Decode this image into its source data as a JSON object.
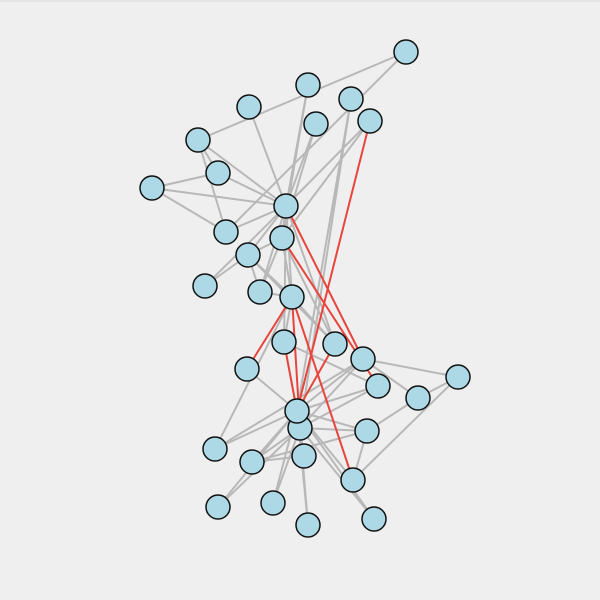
{
  "graph": {
    "node_count": 34,
    "edge_count": 78,
    "highlighted_edge_count": 8,
    "colors": {
      "background": "#efefef",
      "node_fill": "#add8e6",
      "node_stroke": "#111111",
      "edge_default": "#b8b8b8",
      "edge_highlight": "#e8453c"
    },
    "edges": [
      [
        1,
        2
      ],
      [
        1,
        3
      ],
      [
        1,
        4
      ],
      [
        1,
        5
      ],
      [
        1,
        6
      ],
      [
        1,
        7
      ],
      [
        1,
        8
      ],
      [
        1,
        9
      ],
      [
        1,
        11
      ],
      [
        1,
        12
      ],
      [
        1,
        13
      ],
      [
        1,
        14
      ],
      [
        1,
        18
      ],
      [
        1,
        20
      ],
      [
        1,
        22
      ],
      [
        1,
        32
      ],
      [
        2,
        3
      ],
      [
        2,
        4
      ],
      [
        2,
        8
      ],
      [
        2,
        14
      ],
      [
        2,
        18
      ],
      [
        2,
        20
      ],
      [
        2,
        22
      ],
      [
        2,
        31
      ],
      [
        3,
        4
      ],
      [
        3,
        8
      ],
      [
        3,
        9
      ],
      [
        3,
        10
      ],
      [
        3,
        14
      ],
      [
        3,
        28
      ],
      [
        3,
        29
      ],
      [
        3,
        33
      ],
      [
        4,
        8
      ],
      [
        4,
        13
      ],
      [
        4,
        14
      ],
      [
        5,
        7
      ],
      [
        5,
        11
      ],
      [
        6,
        7
      ],
      [
        6,
        11
      ],
      [
        6,
        17
      ],
      [
        7,
        17
      ],
      [
        9,
        31
      ],
      [
        9,
        33
      ],
      [
        9,
        34
      ],
      [
        10,
        34
      ],
      [
        14,
        34
      ],
      [
        15,
        33
      ],
      [
        15,
        34
      ],
      [
        16,
        33
      ],
      [
        16,
        34
      ],
      [
        19,
        33
      ],
      [
        19,
        34
      ],
      [
        20,
        34
      ],
      [
        21,
        33
      ],
      [
        21,
        34
      ],
      [
        23,
        33
      ],
      [
        23,
        34
      ],
      [
        24,
        26
      ],
      [
        24,
        28
      ],
      [
        24,
        30
      ],
      [
        24,
        33
      ],
      [
        24,
        34
      ],
      [
        25,
        26
      ],
      [
        25,
        28
      ],
      [
        25,
        32
      ],
      [
        26,
        32
      ],
      [
        27,
        30
      ],
      [
        27,
        34
      ],
      [
        28,
        34
      ],
      [
        29,
        32
      ],
      [
        29,
        34
      ],
      [
        30,
        33
      ],
      [
        30,
        34
      ],
      [
        31,
        33
      ],
      [
        31,
        34
      ],
      [
        32,
        33
      ],
      [
        32,
        34
      ],
      [
        33,
        34
      ]
    ],
    "highlighted_edges": [
      [
        1,
        32
      ],
      [
        20,
        34
      ],
      [
        3,
        10
      ],
      [
        9,
        34
      ],
      [
        3,
        28
      ],
      [
        3,
        33
      ],
      [
        14,
        34
      ],
      [
        2,
        31
      ]
    ]
  }
}
